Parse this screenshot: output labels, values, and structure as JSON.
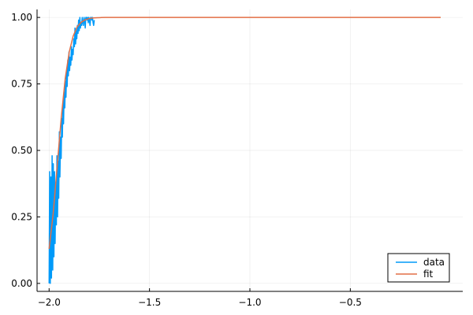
{
  "chart_data": {
    "type": "line",
    "xlim": [
      -2.06,
      0.06
    ],
    "ylim": [
      -0.03,
      1.03
    ],
    "x_ticks": [
      -2.0,
      -1.5,
      -1.0,
      -0.5
    ],
    "x_tick_labels": [
      "−2.0",
      "−1.5",
      "−1.0",
      "−0.5"
    ],
    "y_ticks": [
      0.0,
      0.25,
      0.5,
      0.75,
      1.0
    ],
    "y_tick_labels": [
      "0.00",
      "0.25",
      "0.50",
      "0.75",
      "1.00"
    ],
    "grid": true,
    "legend_position": "bottom-right",
    "series": [
      {
        "name": "data",
        "color": "#009af9",
        "x": [
          -2.0,
          -1.997,
          -1.994,
          -1.991,
          -1.988,
          -1.985,
          -1.982,
          -1.979,
          -1.976,
          -1.973,
          -1.97,
          -1.967,
          -1.964,
          -1.961,
          -1.958,
          -1.955,
          -1.952,
          -1.949,
          -1.946,
          -1.943,
          -1.94,
          -1.937,
          -1.934,
          -1.931,
          -1.928,
          -1.925,
          -1.922,
          -1.919,
          -1.916,
          -1.913,
          -1.91,
          -1.907,
          -1.904,
          -1.901,
          -1.898,
          -1.895,
          -1.892,
          -1.889,
          -1.886,
          -1.883,
          -1.88,
          -1.877,
          -1.874,
          -1.871,
          -1.868,
          -1.865,
          -1.862,
          -1.859,
          -1.856,
          -1.853,
          -1.85,
          -1.847,
          -1.844,
          -1.841,
          -1.838,
          -1.835,
          -1.832,
          -1.829,
          -1.826,
          -1.823,
          -1.82,
          -1.817,
          -1.814,
          -1.811,
          -1.808,
          -1.805,
          -1.802,
          -1.799,
          -1.796,
          -1.793,
          -1.79,
          -1.787,
          -1.784,
          -1.781,
          -1.778,
          -1.775
        ],
        "y": [
          0.0,
          0.42,
          0.0,
          0.4,
          0.02,
          0.48,
          0.05,
          0.45,
          0.1,
          0.42,
          0.15,
          0.38,
          0.22,
          0.48,
          0.25,
          0.46,
          0.32,
          0.57,
          0.4,
          0.55,
          0.47,
          0.62,
          0.55,
          0.68,
          0.6,
          0.72,
          0.66,
          0.76,
          0.7,
          0.8,
          0.74,
          0.84,
          0.78,
          0.87,
          0.8,
          0.85,
          0.82,
          0.89,
          0.84,
          0.88,
          0.86,
          0.92,
          0.89,
          0.96,
          0.9,
          0.95,
          0.92,
          0.97,
          0.94,
          0.99,
          0.95,
          1.0,
          0.96,
          0.98,
          0.97,
          1.0,
          0.98,
          0.97,
          1.0,
          0.99,
          0.96,
          1.0,
          1.0,
          0.99,
          1.0,
          0.98,
          1.0,
          0.99,
          0.97,
          1.0,
          1.0,
          0.99,
          1.0,
          0.98,
          0.97,
          0.99
        ]
      },
      {
        "name": "fit",
        "color": "#e26f46",
        "x": [
          -2.0,
          -1.98,
          -1.96,
          -1.94,
          -1.92,
          -1.9,
          -1.88,
          -1.86,
          -1.84,
          -1.82,
          -1.8,
          -1.78,
          -1.76,
          -1.74,
          -1.72,
          -1.7,
          -1.65,
          -1.6,
          -1.5,
          -1.4,
          -1.2,
          -1.0,
          -0.8,
          -0.6,
          -0.4,
          -0.2,
          -0.05
        ],
        "y": [
          0.13,
          0.26,
          0.44,
          0.62,
          0.77,
          0.87,
          0.93,
          0.965,
          0.982,
          0.991,
          0.996,
          0.998,
          0.999,
          0.9995,
          1.0,
          1.0,
          1.0,
          1.0,
          1.0,
          1.0,
          1.0,
          1.0,
          1.0,
          1.0,
          1.0,
          1.0,
          1.0
        ]
      }
    ]
  },
  "legend": {
    "items": [
      {
        "label": "data",
        "color": "#009af9"
      },
      {
        "label": "fit",
        "color": "#e26f46"
      }
    ]
  }
}
